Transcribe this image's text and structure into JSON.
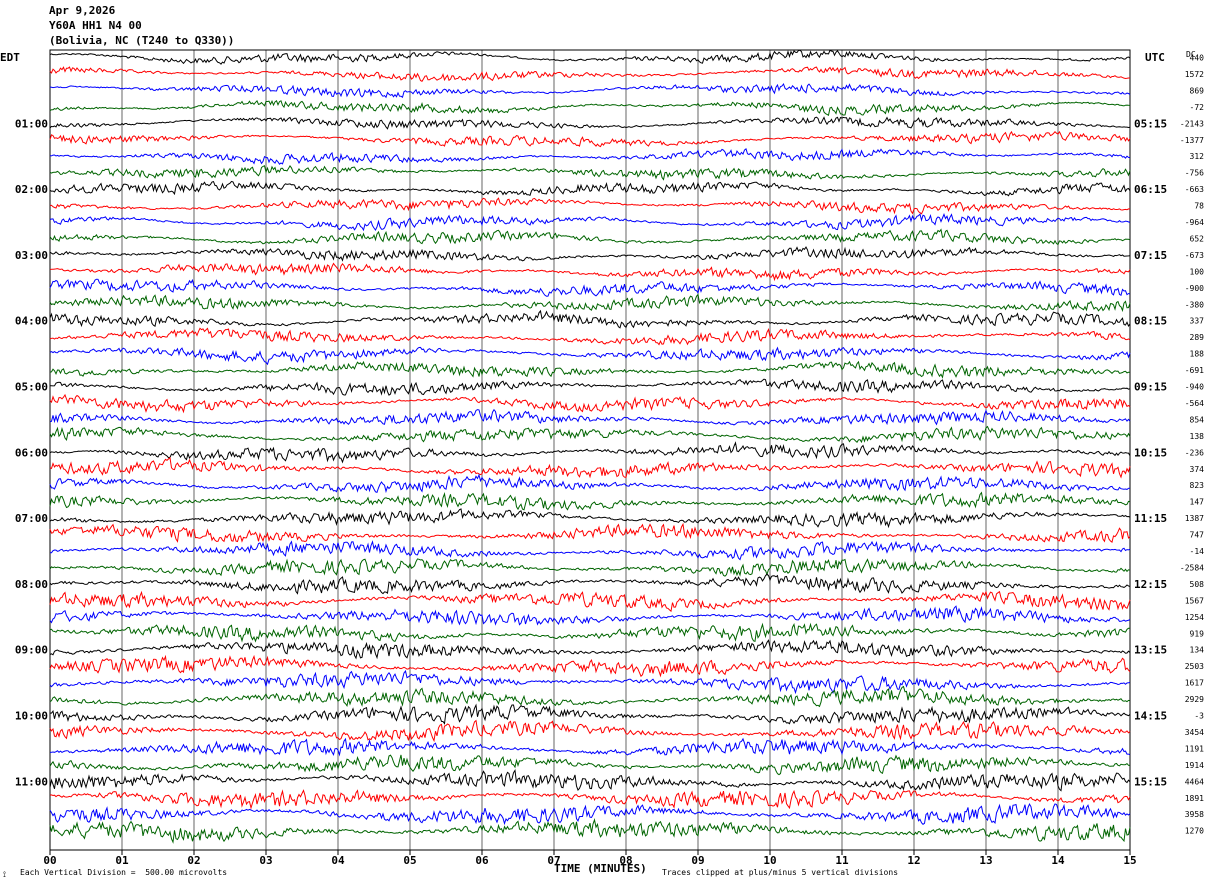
{
  "header": {
    "date": "Apr 9,2026",
    "station": "Y60A HH1 N4 00",
    "location": "(Bolivia, NC (T240 to Q330))"
  },
  "left_axis_label": "EDT",
  "right_axis_label": "UTC",
  "dc_label": "DC",
  "footer": {
    "xlabel": "TIME (MINUTES)",
    "scale_note": "Each Vertical Division =  500.00 microvolts",
    "clip_note": "Traces clipped at plus/minus 5 vertical divisions"
  },
  "colors": {
    "trace_cycle": [
      "#000000",
      "#ff0000",
      "#0000ff",
      "#006400"
    ],
    "grid": "#000000"
  },
  "chart_data": {
    "type": "line",
    "title": "Y60A HH1 N4 00",
    "xlabel": "TIME (MINUTES)",
    "ylabel": "",
    "xlim": [
      0,
      15
    ],
    "x_ticks": [
      "00",
      "01",
      "02",
      "03",
      "04",
      "05",
      "06",
      "07",
      "08",
      "09",
      "10",
      "11",
      "12",
      "13",
      "14",
      "15"
    ],
    "traces_per_hour": 4,
    "left_time_labels": [
      "01:00",
      "02:00",
      "03:00",
      "04:00",
      "05:00",
      "06:00",
      "07:00",
      "08:00",
      "09:00",
      "10:00",
      "11:00"
    ],
    "right_time_labels": [
      "05:15",
      "06:15",
      "07:15",
      "08:15",
      "09:15",
      "10:15",
      "11:15",
      "12:15",
      "13:15",
      "14:15",
      "15:15"
    ],
    "dc_offsets": [
      440,
      1572,
      869,
      -72,
      -2143,
      -1377,
      312,
      -756,
      -663,
      78,
      -964,
      652,
      -673,
      100,
      -900,
      -380,
      337,
      289,
      188,
      -691,
      -940,
      -564,
      854,
      138,
      -236,
      374,
      823,
      147,
      1387,
      747,
      -14,
      -2584,
      508,
      1567,
      1254,
      919,
      134,
      2503,
      1617,
      2929,
      -3,
      3454,
      1191,
      1914,
      4464,
      1891,
      3958,
      1270
    ],
    "grid": true
  }
}
